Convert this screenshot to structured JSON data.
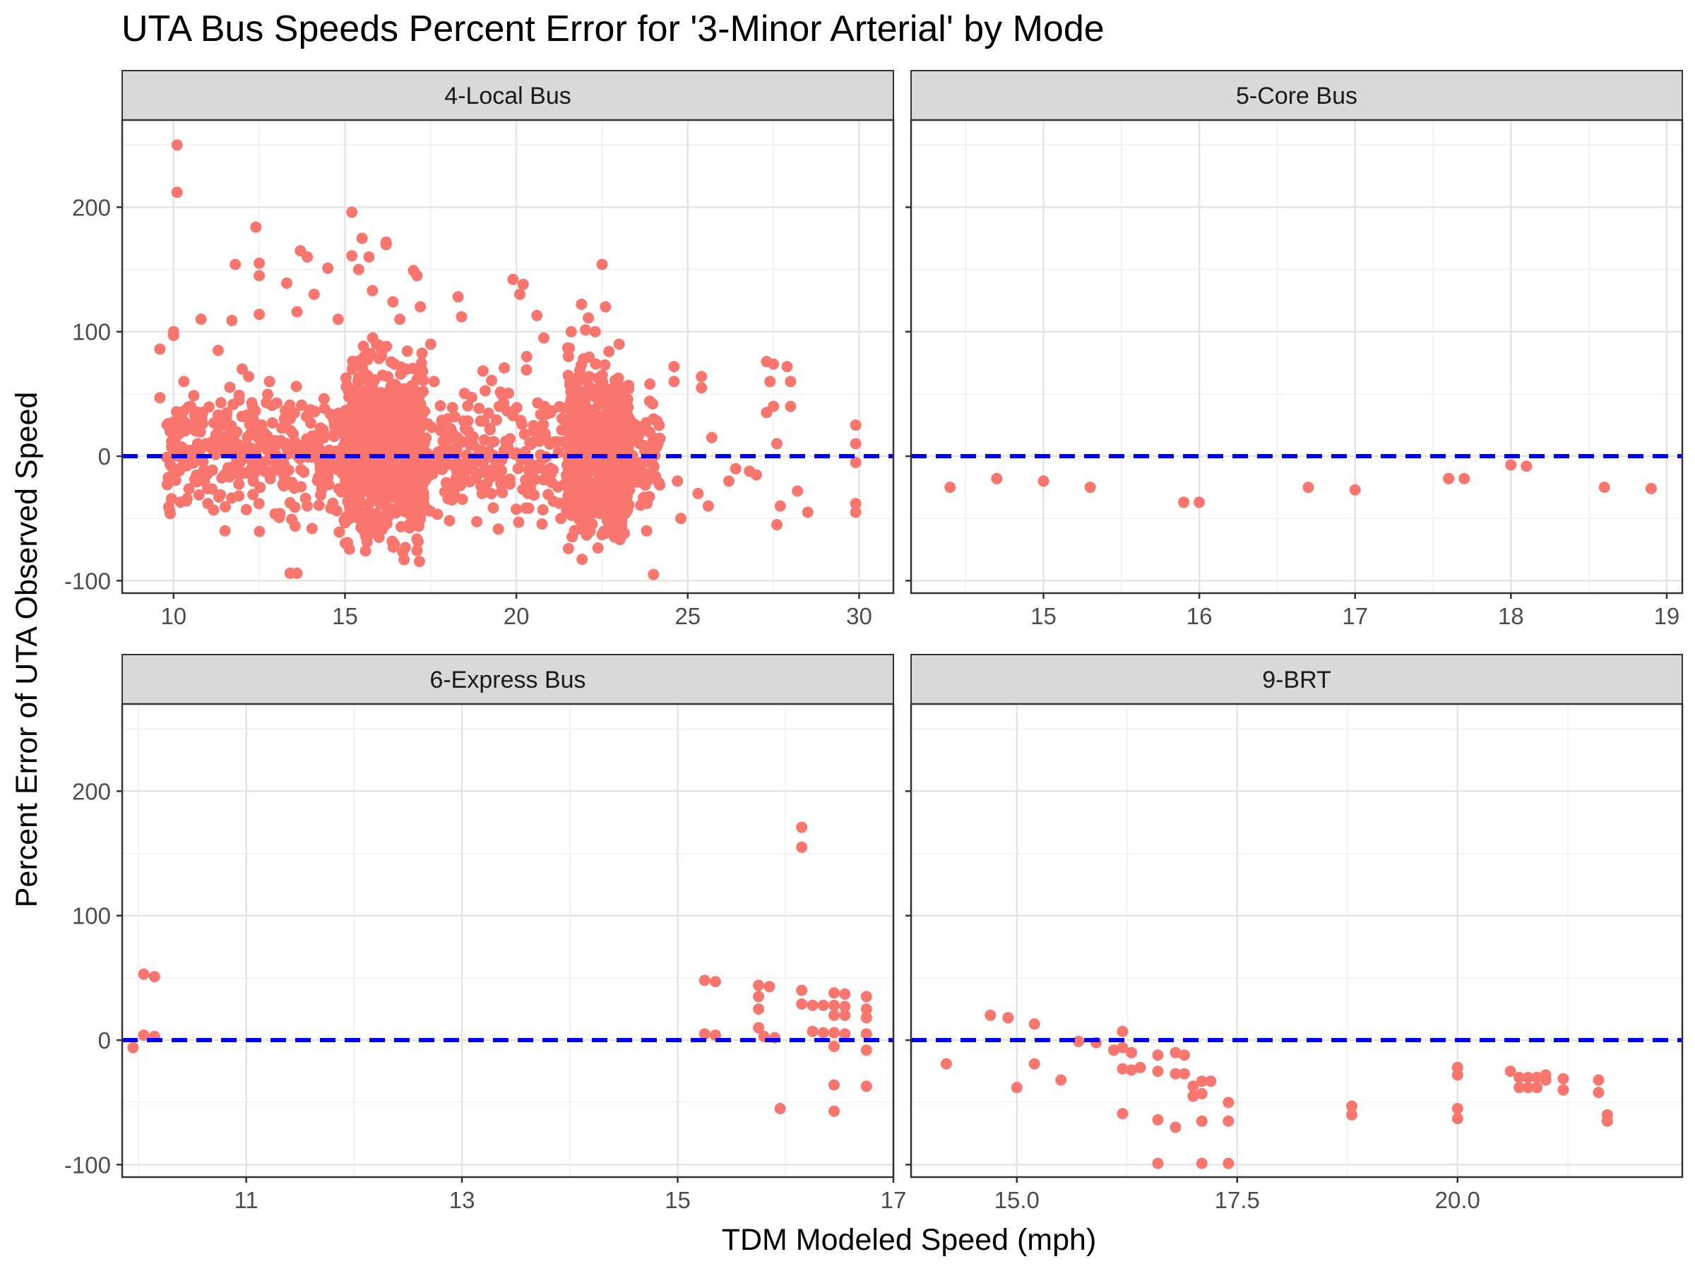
{
  "chart_data": {
    "type": "scatter",
    "title": "UTA Bus Speeds Percent Error for '3-Minor Arterial' by Mode",
    "xlabel": "TDM Modeled Speed (mph)",
    "ylabel": "Percent Error of UTA Observed Speed",
    "ylim": [
      -110,
      270
    ],
    "y_ticks": [
      -100,
      0,
      100,
      200
    ],
    "reference_line": {
      "y": 0,
      "color": "#0000FF",
      "style": "dashed"
    },
    "point_color": "#F8766D",
    "grid": true,
    "layout": "facet-2x2",
    "facets": [
      {
        "label": "4-Local Bus",
        "xlim": [
          8.5,
          31.0
        ],
        "x_ticks": [
          10,
          15,
          20,
          25,
          30
        ],
        "x_tick_labels": [
          "10",
          "15",
          "20",
          "25",
          "30"
        ],
        "points": [
          [
            10.1,
            250
          ],
          [
            10.1,
            212
          ],
          [
            10.0,
            100
          ],
          [
            10.0,
            97
          ],
          [
            9.6,
            86
          ],
          [
            9.6,
            47
          ],
          [
            9.9,
            20
          ],
          [
            10.0,
            5
          ],
          [
            9.9,
            -20
          ],
          [
            10.0,
            -10
          ],
          [
            9.9,
            -46
          ],
          [
            10.3,
            60
          ],
          [
            10.5,
            40
          ],
          [
            10.7,
            10
          ],
          [
            10.9,
            -20
          ],
          [
            11.0,
            -38
          ],
          [
            11.3,
            33
          ],
          [
            11.5,
            5
          ],
          [
            10.8,
            110
          ],
          [
            11.3,
            85
          ],
          [
            11.5,
            -60
          ],
          [
            11.7,
            109
          ],
          [
            11.8,
            154
          ],
          [
            12.0,
            70
          ],
          [
            12.3,
            40
          ],
          [
            12.4,
            184
          ],
          [
            12.5,
            155
          ],
          [
            12.5,
            145
          ],
          [
            12.5,
            114
          ],
          [
            12.8,
            60
          ],
          [
            13.0,
            0
          ],
          [
            13.3,
            139
          ],
          [
            13.6,
            116
          ],
          [
            13.7,
            165
          ],
          [
            13.4,
            -94
          ],
          [
            13.6,
            -94
          ],
          [
            13.9,
            160
          ],
          [
            14.1,
            130
          ],
          [
            14.5,
            151
          ],
          [
            14.8,
            110
          ],
          [
            15.2,
            161
          ],
          [
            15.2,
            196
          ],
          [
            15.4,
            150
          ],
          [
            15.5,
            175
          ],
          [
            15.7,
            160
          ],
          [
            15.8,
            133
          ],
          [
            16.2,
            172
          ],
          [
            16.2,
            170
          ],
          [
            16.4,
            124
          ],
          [
            16.6,
            110
          ],
          [
            17.0,
            149
          ],
          [
            17.1,
            145
          ],
          [
            17.2,
            120
          ],
          [
            17.5,
            90
          ],
          [
            17.6,
            60
          ],
          [
            18.0,
            30
          ],
          [
            18.3,
            128
          ],
          [
            18.4,
            112
          ],
          [
            18.6,
            20
          ],
          [
            18.8,
            -5
          ],
          [
            19.0,
            -30
          ],
          [
            19.5,
            40
          ],
          [
            19.9,
            142
          ],
          [
            20.1,
            130
          ],
          [
            20.2,
            138
          ],
          [
            20.3,
            80
          ],
          [
            20.5,
            20
          ],
          [
            20.6,
            113
          ],
          [
            20.8,
            95
          ],
          [
            21.0,
            35
          ],
          [
            21.3,
            -50
          ],
          [
            21.5,
            87
          ],
          [
            21.6,
            100
          ],
          [
            21.8,
            60
          ],
          [
            21.9,
            122
          ],
          [
            22.1,
            111
          ],
          [
            22.3,
            100
          ],
          [
            22.5,
            154
          ],
          [
            22.6,
            120
          ],
          [
            22.7,
            84
          ],
          [
            22.9,
            60
          ],
          [
            23.0,
            90
          ],
          [
            23.2,
            40
          ],
          [
            23.4,
            -20
          ],
          [
            23.6,
            10
          ],
          [
            23.8,
            -60
          ],
          [
            24.0,
            30
          ],
          [
            24.0,
            -95
          ],
          [
            24.6,
            72
          ],
          [
            24.6,
            60
          ],
          [
            24.7,
            -20
          ],
          [
            24.8,
            -50
          ],
          [
            25.3,
            -30
          ],
          [
            25.4,
            64
          ],
          [
            25.4,
            55
          ],
          [
            25.6,
            -40
          ],
          [
            25.7,
            15
          ],
          [
            26.2,
            -20
          ],
          [
            26.4,
            -10
          ],
          [
            26.8,
            -12
          ],
          [
            27.0,
            -15
          ],
          [
            27.3,
            76
          ],
          [
            27.5,
            74
          ],
          [
            27.4,
            60
          ],
          [
            27.5,
            40
          ],
          [
            27.3,
            35
          ],
          [
            27.6,
            10
          ],
          [
            27.6,
            -55
          ],
          [
            27.7,
            -40
          ],
          [
            27.9,
            72
          ],
          [
            28.0,
            60
          ],
          [
            28.0,
            40
          ],
          [
            28.2,
            -28
          ],
          [
            28.5,
            -45
          ],
          [
            29.9,
            25
          ],
          [
            29.9,
            10
          ],
          [
            29.9,
            -38
          ],
          [
            29.9,
            -45
          ],
          [
            29.9,
            -5
          ]
        ],
        "dense_clusters": [
          {
            "x_range": [
              15.0,
              17.3
            ],
            "y_range": [
              -100,
              107
            ],
            "count": 700
          },
          {
            "x_range": [
              21.5,
              23.3
            ],
            "y_range": [
              -95,
              104
            ],
            "count": 500
          },
          {
            "x_range": [
              9.8,
              24.2
            ],
            "y_range": [
              -70,
              75
            ],
            "count": 900
          }
        ]
      },
      {
        "label": "5-Core Bus",
        "xlim": [
          14.15,
          19.1
        ],
        "x_ticks": [
          15,
          16,
          17,
          18,
          19
        ],
        "x_tick_labels": [
          "15",
          "16",
          "17",
          "18",
          "19"
        ],
        "points": [
          [
            14.4,
            -25
          ],
          [
            14.7,
            -18
          ],
          [
            15.0,
            -20
          ],
          [
            15.3,
            -25
          ],
          [
            15.9,
            -37
          ],
          [
            16.0,
            -37
          ],
          [
            16.7,
            -25
          ],
          [
            17.0,
            -27
          ],
          [
            17.6,
            -18
          ],
          [
            17.7,
            -18
          ],
          [
            18.0,
            -7
          ],
          [
            18.1,
            -8
          ],
          [
            18.6,
            -25
          ],
          [
            18.9,
            -26
          ]
        ]
      },
      {
        "label": "6-Express Bus",
        "xlim": [
          9.85,
          17.0
        ],
        "x_ticks": [
          11,
          13,
          15,
          17
        ],
        "x_tick_labels": [
          "11",
          "13",
          "15",
          "17"
        ],
        "points": [
          [
            9.95,
            -6
          ],
          [
            10.05,
            53
          ],
          [
            10.15,
            51
          ],
          [
            10.05,
            4
          ],
          [
            10.15,
            3
          ],
          [
            15.25,
            48
          ],
          [
            15.35,
            47
          ],
          [
            15.25,
            5
          ],
          [
            15.35,
            4
          ],
          [
            15.75,
            44
          ],
          [
            15.85,
            43
          ],
          [
            15.75,
            35
          ],
          [
            15.75,
            25
          ],
          [
            15.75,
            10
          ],
          [
            15.8,
            3
          ],
          [
            15.9,
            2
          ],
          [
            15.95,
            -55
          ],
          [
            16.15,
            171
          ],
          [
            16.15,
            155
          ],
          [
            16.15,
            40
          ],
          [
            16.15,
            29
          ],
          [
            16.25,
            28
          ],
          [
            16.35,
            28
          ],
          [
            16.25,
            7
          ],
          [
            16.35,
            6
          ],
          [
            16.45,
            38
          ],
          [
            16.55,
            37
          ],
          [
            16.45,
            28
          ],
          [
            16.55,
            27
          ],
          [
            16.45,
            20
          ],
          [
            16.55,
            20
          ],
          [
            16.45,
            6
          ],
          [
            16.55,
            5
          ],
          [
            16.45,
            -5
          ],
          [
            16.45,
            -36
          ],
          [
            16.45,
            -57
          ],
          [
            16.75,
            35
          ],
          [
            16.75,
            25
          ],
          [
            16.75,
            18
          ],
          [
            16.75,
            5
          ],
          [
            16.75,
            -8
          ],
          [
            16.75,
            -37
          ]
        ]
      },
      {
        "label": "9-BRT",
        "xlim": [
          13.8,
          22.55
        ],
        "x_ticks": [
          15.0,
          17.5,
          20.0
        ],
        "x_tick_labels": [
          "15.0",
          "17.5",
          "20.0"
        ],
        "points": [
          [
            14.2,
            -19
          ],
          [
            14.7,
            20
          ],
          [
            14.9,
            18
          ],
          [
            15.0,
            -38
          ],
          [
            15.2,
            13
          ],
          [
            15.2,
            -19
          ],
          [
            15.5,
            -32
          ],
          [
            15.7,
            -1
          ],
          [
            15.9,
            -2
          ],
          [
            16.1,
            -8
          ],
          [
            16.2,
            -6
          ],
          [
            16.2,
            7
          ],
          [
            16.2,
            -23
          ],
          [
            16.3,
            -10
          ],
          [
            16.3,
            -24
          ],
          [
            16.4,
            -22
          ],
          [
            16.2,
            -59
          ],
          [
            16.6,
            -12
          ],
          [
            16.6,
            -25
          ],
          [
            16.6,
            -64
          ],
          [
            16.6,
            -99
          ],
          [
            16.8,
            -10
          ],
          [
            16.8,
            -27
          ],
          [
            16.8,
            -70
          ],
          [
            16.9,
            -12
          ],
          [
            16.9,
            -27
          ],
          [
            17.0,
            -37
          ],
          [
            17.0,
            -45
          ],
          [
            17.1,
            -33
          ],
          [
            17.1,
            -43
          ],
          [
            17.1,
            -65
          ],
          [
            17.1,
            -99
          ],
          [
            17.2,
            -33
          ],
          [
            17.4,
            -50
          ],
          [
            17.4,
            -65
          ],
          [
            17.4,
            -99
          ],
          [
            18.8,
            -53
          ],
          [
            18.8,
            -60
          ],
          [
            20.0,
            -22
          ],
          [
            20.0,
            -28
          ],
          [
            20.0,
            -55
          ],
          [
            20.0,
            -63
          ],
          [
            20.6,
            -25
          ],
          [
            20.7,
            -30
          ],
          [
            20.8,
            -30
          ],
          [
            20.9,
            -30
          ],
          [
            20.7,
            -38
          ],
          [
            20.8,
            -38
          ],
          [
            20.9,
            -38
          ],
          [
            21.0,
            -28
          ],
          [
            21.0,
            -32
          ],
          [
            21.2,
            -31
          ],
          [
            21.2,
            -40
          ],
          [
            21.6,
            -32
          ],
          [
            21.6,
            -42
          ],
          [
            21.7,
            -60
          ],
          [
            21.7,
            -65
          ]
        ]
      }
    ]
  }
}
